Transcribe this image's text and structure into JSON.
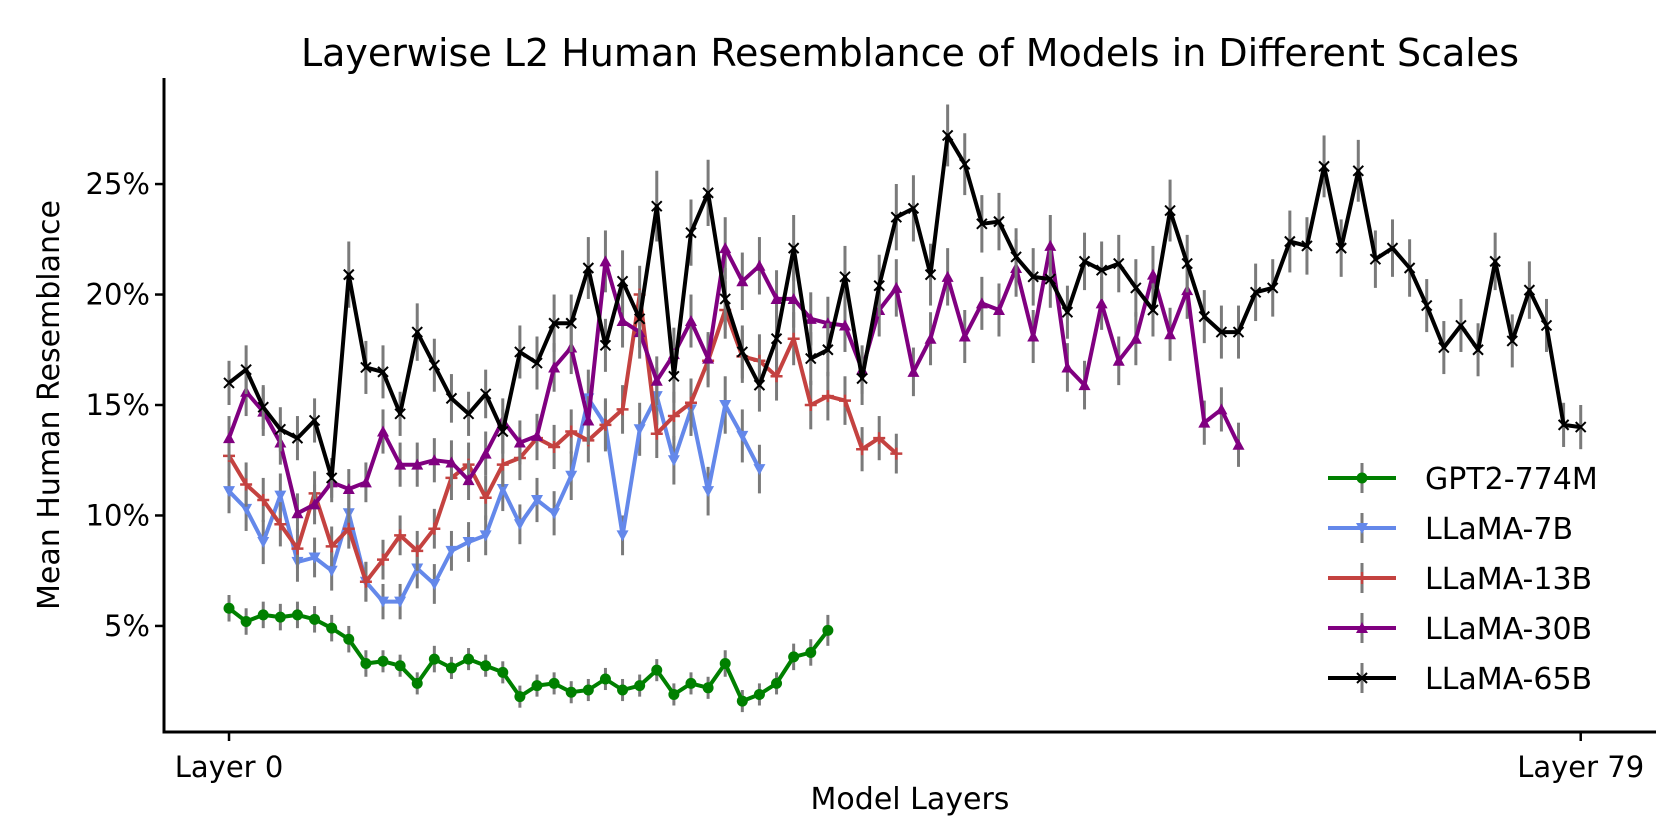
{
  "chart_data": {
    "type": "line",
    "title": "Layerwise L2 Human Resemblance of Models in Different Scales",
    "xlabel": "Model Layers",
    "ylabel": "Mean Human Resemblance",
    "xlim": [
      -3.8,
      83.4
    ],
    "ylim": [
      0.2,
      29.8
    ],
    "x_ticks": [
      {
        "value": 0,
        "label": "Layer 0"
      },
      {
        "value": 79,
        "label": "Layer 79"
      }
    ],
    "y_ticks": [
      {
        "value": 5,
        "label": "5%"
      },
      {
        "value": 10,
        "label": "10%"
      },
      {
        "value": 15,
        "label": "15%"
      },
      {
        "value": 20,
        "label": "20%"
      },
      {
        "value": 25,
        "label": "25%"
      }
    ],
    "legend_position": "bottom-right",
    "series": [
      {
        "name": "GPT2-774M",
        "color": "#008000",
        "marker": "circle",
        "values": [
          5.8,
          5.2,
          5.5,
          5.4,
          5.5,
          5.3,
          4.9,
          4.4,
          3.3,
          3.4,
          3.2,
          2.4,
          3.5,
          3.1,
          3.5,
          3.2,
          2.9,
          1.8,
          2.3,
          2.4,
          2.0,
          2.1,
          2.6,
          2.1,
          2.3,
          3.0,
          1.9,
          2.4,
          2.2,
          3.3,
          1.6,
          1.9,
          2.4,
          3.6,
          3.8,
          4.8
        ],
        "error": [
          0.6,
          0.6,
          0.6,
          0.6,
          0.6,
          0.6,
          0.6,
          0.6,
          0.6,
          0.5,
          0.5,
          0.5,
          0.6,
          0.5,
          0.5,
          0.5,
          0.5,
          0.5,
          0.5,
          0.5,
          0.5,
          0.5,
          0.5,
          0.5,
          0.5,
          0.5,
          0.5,
          0.5,
          0.5,
          0.6,
          0.5,
          0.5,
          0.5,
          0.6,
          0.6,
          0.7
        ]
      },
      {
        "name": "LLaMA-7B",
        "color": "#6488EA",
        "marker": "triangle-down",
        "values": [
          11.1,
          10.3,
          8.8,
          10.9,
          7.9,
          8.1,
          7.5,
          10.1,
          7.0,
          6.1,
          6.1,
          7.6,
          6.9,
          8.4,
          8.8,
          9.1,
          11.2,
          9.6,
          10.7,
          10.1,
          11.8,
          15.3,
          14.1,
          9.1,
          13.9,
          15.4,
          12.5,
          14.8,
          11.1,
          15.0,
          13.6,
          12.1
        ],
        "error": [
          1.0,
          1.0,
          1.0,
          1.0,
          0.9,
          0.9,
          0.9,
          1.0,
          0.9,
          0.8,
          0.8,
          0.9,
          0.9,
          0.9,
          0.9,
          0.9,
          1.0,
          0.9,
          1.0,
          1.0,
          1.1,
          1.3,
          1.2,
          0.9,
          1.2,
          1.3,
          1.1,
          1.2,
          1.1,
          1.3,
          1.2,
          1.1
        ]
      },
      {
        "name": "LLaMA-13B",
        "color": "#C44240",
        "marker": "plus",
        "values": [
          12.7,
          11.4,
          10.7,
          9.6,
          8.5,
          11.0,
          8.6,
          9.4,
          7.0,
          8.0,
          9.1,
          8.4,
          9.4,
          11.7,
          12.3,
          10.8,
          12.3,
          12.6,
          13.5,
          13.1,
          13.8,
          13.4,
          14.1,
          14.8,
          20.0,
          13.7,
          14.5,
          15.1,
          17.0,
          19.3,
          17.2,
          17.0,
          16.3,
          18.0,
          15.0,
          15.4,
          15.2,
          13.0,
          13.5,
          12.8
        ],
        "error": [
          1.0,
          1.0,
          1.0,
          1.0,
          0.9,
          1.0,
          0.9,
          0.9,
          0.9,
          0.9,
          0.9,
          0.9,
          0.9,
          1.0,
          1.0,
          1.0,
          1.0,
          1.0,
          1.0,
          1.0,
          1.0,
          1.0,
          1.1,
          1.1,
          1.3,
          1.1,
          1.1,
          1.1,
          1.2,
          1.3,
          1.2,
          1.2,
          1.1,
          1.2,
          1.1,
          1.1,
          1.1,
          1.0,
          1.0,
          0.9
        ]
      },
      {
        "name": "LLaMA-30B",
        "color": "#800080",
        "marker": "triangle-up",
        "values": [
          13.5,
          15.6,
          14.7,
          13.3,
          10.1,
          10.5,
          11.5,
          11.2,
          11.5,
          13.8,
          12.3,
          12.3,
          12.5,
          12.4,
          11.6,
          12.8,
          14.3,
          13.3,
          13.6,
          16.7,
          17.6,
          14.3,
          21.5,
          18.8,
          18.3,
          16.1,
          17.3,
          18.8,
          17.1,
          22.1,
          20.6,
          21.3,
          19.8,
          19.8,
          18.9,
          18.7,
          18.6,
          16.6,
          19.3,
          20.3,
          16.5,
          18.0,
          20.8,
          18.1,
          19.6,
          19.3,
          21.2,
          18.1,
          22.2,
          16.7,
          15.9,
          19.6,
          17.0,
          18.0,
          20.9,
          18.2,
          20.2,
          14.2,
          14.8,
          13.2
        ],
        "error": [
          1.0,
          1.1,
          1.1,
          1.0,
          0.9,
          0.9,
          0.9,
          0.9,
          0.9,
          1.0,
          1.0,
          1.0,
          1.0,
          1.0,
          0.9,
          1.0,
          1.0,
          1.0,
          1.0,
          1.1,
          1.2,
          1.1,
          1.4,
          1.2,
          1.2,
          1.1,
          1.2,
          1.2,
          1.2,
          1.4,
          1.3,
          1.3,
          1.3,
          1.3,
          1.2,
          1.2,
          1.2,
          1.1,
          1.2,
          1.3,
          1.1,
          1.2,
          1.3,
          1.2,
          1.2,
          1.2,
          1.3,
          1.2,
          1.4,
          1.1,
          1.1,
          1.2,
          1.1,
          1.2,
          1.3,
          1.2,
          1.3,
          1.0,
          1.0,
          1.0
        ]
      },
      {
        "name": "LLaMA-65B",
        "color": "#000000",
        "marker": "x",
        "values": [
          16.0,
          16.6,
          14.9,
          13.9,
          13.5,
          14.3,
          11.7,
          20.9,
          16.7,
          16.5,
          14.6,
          18.3,
          16.8,
          15.3,
          14.6,
          15.5,
          13.8,
          17.4,
          16.9,
          18.7,
          18.7,
          21.2,
          17.7,
          20.6,
          18.9,
          24.0,
          16.3,
          22.8,
          24.6,
          19.8,
          17.4,
          15.9,
          18.0,
          22.1,
          17.1,
          17.5,
          20.8,
          16.2,
          20.4,
          23.5,
          23.9,
          20.9,
          27.2,
          25.9,
          23.2,
          23.3,
          21.7,
          20.8,
          20.7,
          19.2,
          21.5,
          21.1,
          21.4,
          20.3,
          19.3,
          23.8,
          21.4,
          19.0,
          18.3,
          18.3,
          20.1,
          20.3,
          22.4,
          22.2,
          25.8,
          22.1,
          25.6,
          21.6,
          22.1,
          21.2,
          19.5,
          17.6,
          18.6,
          17.5,
          21.5,
          17.9,
          20.2,
          18.6,
          14.1,
          14.0
        ],
        "error": [
          1.0,
          1.1,
          1.0,
          1.0,
          1.0,
          1.0,
          0.9,
          1.5,
          1.2,
          1.2,
          1.0,
          1.3,
          1.2,
          1.1,
          1.0,
          1.1,
          1.0,
          1.2,
          1.2,
          1.3,
          1.3,
          1.4,
          1.2,
          1.4,
          1.3,
          1.6,
          1.2,
          1.5,
          1.5,
          1.4,
          1.2,
          1.2,
          1.3,
          1.5,
          1.2,
          1.2,
          1.4,
          1.2,
          1.4,
          1.5,
          1.5,
          1.4,
          1.4,
          1.4,
          1.3,
          1.3,
          1.3,
          1.3,
          1.3,
          1.2,
          1.3,
          1.3,
          1.3,
          1.3,
          1.2,
          1.4,
          1.3,
          1.2,
          1.2,
          1.2,
          1.3,
          1.3,
          1.4,
          1.3,
          1.4,
          1.3,
          1.4,
          1.3,
          1.3,
          1.3,
          1.2,
          1.2,
          1.2,
          1.2,
          1.3,
          1.2,
          1.3,
          1.2,
          1.0,
          1.0
        ]
      }
    ]
  }
}
